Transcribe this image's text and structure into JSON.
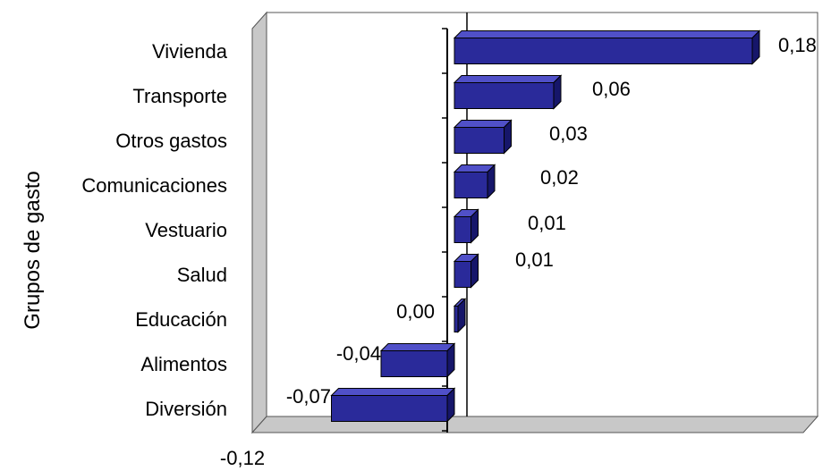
{
  "chart_data": {
    "type": "bar",
    "orientation": "horizontal",
    "ylabel": "Grupos de gasto",
    "xlabel": "",
    "categories": [
      "Vivienda",
      "Transporte",
      "Otros gastos",
      "Comunicaciones",
      "Vestuario",
      "Salud",
      "Educación",
      "Alimentos",
      "Diversión"
    ],
    "values": [
      0.18,
      0.06,
      0.03,
      0.02,
      0.01,
      0.01,
      0.0,
      -0.04,
      -0.07
    ],
    "value_labels": [
      "0,18",
      "0,06",
      "0,03",
      "0,02",
      "0,01",
      "0,01",
      "0,00",
      "-0,04",
      "-0,07"
    ],
    "x_tick_labels": [
      "-0,12"
    ],
    "xlim": [
      -0.12,
      0.22
    ],
    "bar_color": "#2a2a9a",
    "bar_side_color": "#16166a",
    "bar_top_color": "#5050c8",
    "wall_color": "#c8c8c8",
    "grid": false,
    "legend": "none",
    "style": "3d"
  }
}
